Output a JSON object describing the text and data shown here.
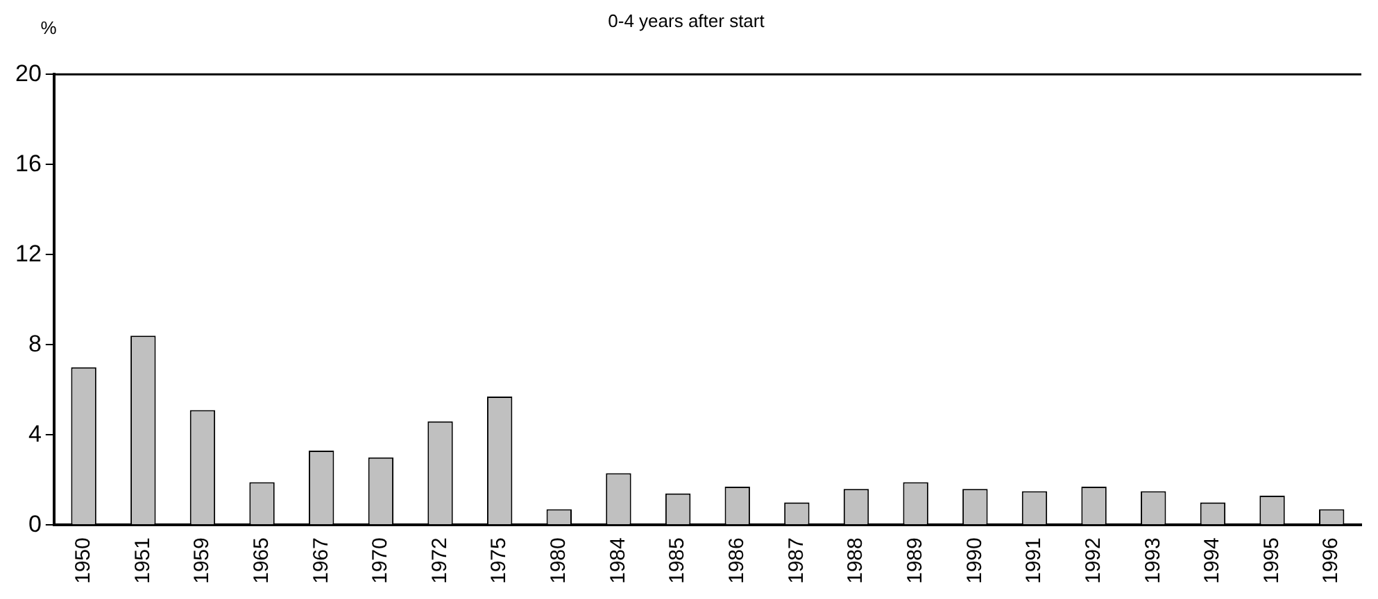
{
  "chart_data": {
    "type": "bar",
    "title": "0-4 years after start",
    "ylabel": "%",
    "categories": [
      "1950",
      "1951",
      "1959",
      "1965",
      "1967",
      "1970",
      "1972",
      "1975",
      "1980",
      "1984",
      "1985",
      "1986",
      "1987",
      "1988",
      "1989",
      "1990",
      "1991",
      "1992",
      "1993",
      "1994",
      "1995",
      "1996"
    ],
    "values": [
      7.0,
      8.4,
      5.1,
      1.9,
      3.3,
      3.0,
      4.6,
      5.7,
      0.7,
      2.3,
      1.4,
      1.7,
      1.0,
      1.6,
      1.9,
      1.6,
      1.5,
      1.7,
      1.5,
      1.0,
      1.3,
      0.7
    ],
    "color": "#c0c0c0",
    "ylim": [
      0,
      20
    ],
    "yticks": [
      0,
      4,
      8,
      12,
      16,
      20
    ],
    "grid": false
  }
}
